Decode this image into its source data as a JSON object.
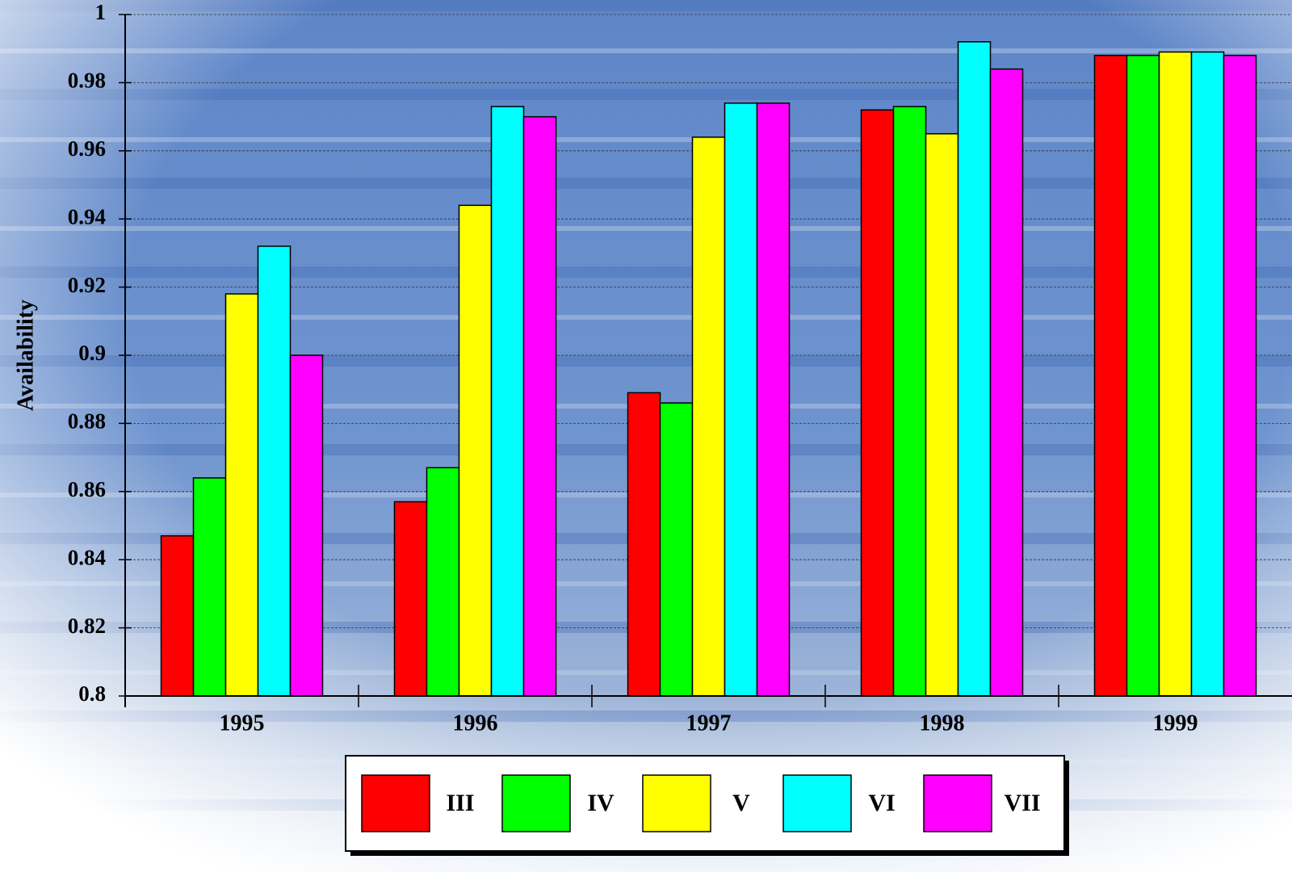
{
  "chart_data": {
    "type": "bar",
    "y_label": "Availability",
    "categories": [
      "1995",
      "1996",
      "1997",
      "1998",
      "1999"
    ],
    "series": [
      {
        "name": "III",
        "color": "#ff0000",
        "values": [
          0.847,
          0.857,
          0.889,
          0.972,
          0.988
        ]
      },
      {
        "name": "IV",
        "color": "#00ff00",
        "values": [
          0.864,
          0.867,
          0.886,
          0.973,
          0.988
        ]
      },
      {
        "name": "V",
        "color": "#ffff00",
        "values": [
          0.918,
          0.944,
          0.964,
          0.965,
          0.989
        ]
      },
      {
        "name": "VI",
        "color": "#00ffff",
        "values": [
          0.932,
          0.973,
          0.974,
          0.992,
          0.989
        ]
      },
      {
        "name": "VII",
        "color": "#ff00ff",
        "values": [
          0.9,
          0.97,
          0.974,
          0.984,
          0.988
        ]
      }
    ],
    "ylim": [
      0.8,
      1
    ],
    "yticks": [
      0.8,
      0.82,
      0.84,
      0.86,
      0.88,
      0.9,
      0.92,
      0.94,
      0.96,
      0.98,
      1
    ],
    "grid": true
  }
}
